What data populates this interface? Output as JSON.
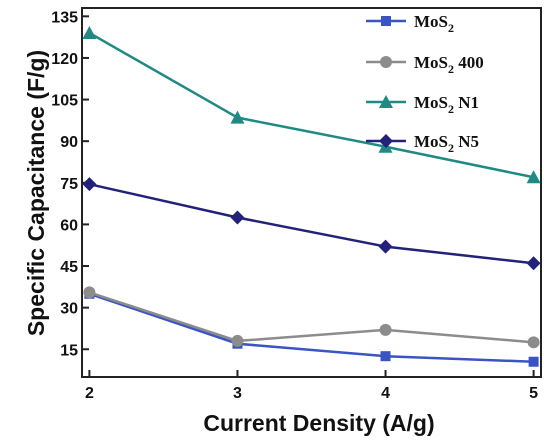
{
  "chart_data": {
    "type": "line",
    "xlabel": "Current Density (A/g)",
    "ylabel": "Specific Capacitance (F/g)",
    "x": [
      2,
      3,
      4,
      5
    ],
    "x_ticks": [
      "2",
      "3",
      "4",
      "5"
    ],
    "xlim": [
      1.95,
      5.05
    ],
    "ylim": [
      5,
      138
    ],
    "y_ticks": [
      "15",
      "30",
      "45",
      "60",
      "75",
      "90",
      "105",
      "120",
      "135"
    ],
    "grid": false,
    "legend_position": "top-right",
    "series": [
      {
        "name": "MoS2",
        "legend": {
          "base": "MoS",
          "sub": "2",
          "suffix": ""
        },
        "values": [
          35,
          17,
          12.5,
          10.5
        ],
        "color": "#3a54c4",
        "marker": "square"
      },
      {
        "name": "MoS2 400",
        "legend": {
          "base": "MoS",
          "sub": "2",
          "suffix": " 400"
        },
        "values": [
          35.5,
          18,
          22,
          17.5
        ],
        "color": "#8c8c8c",
        "marker": "circle"
      },
      {
        "name": "MoS2 N1",
        "legend": {
          "base": "MoS",
          "sub": "2",
          "suffix": " N1"
        },
        "values": [
          129,
          98.5,
          88,
          77
        ],
        "color": "#1f8a84",
        "marker": "triangle"
      },
      {
        "name": "MoS2 N5",
        "legend": {
          "base": "MoS",
          "sub": "2",
          "suffix": " N5"
        },
        "values": [
          74.5,
          62.5,
          52,
          46
        ],
        "color": "#23227a",
        "marker": "diamond"
      }
    ]
  }
}
